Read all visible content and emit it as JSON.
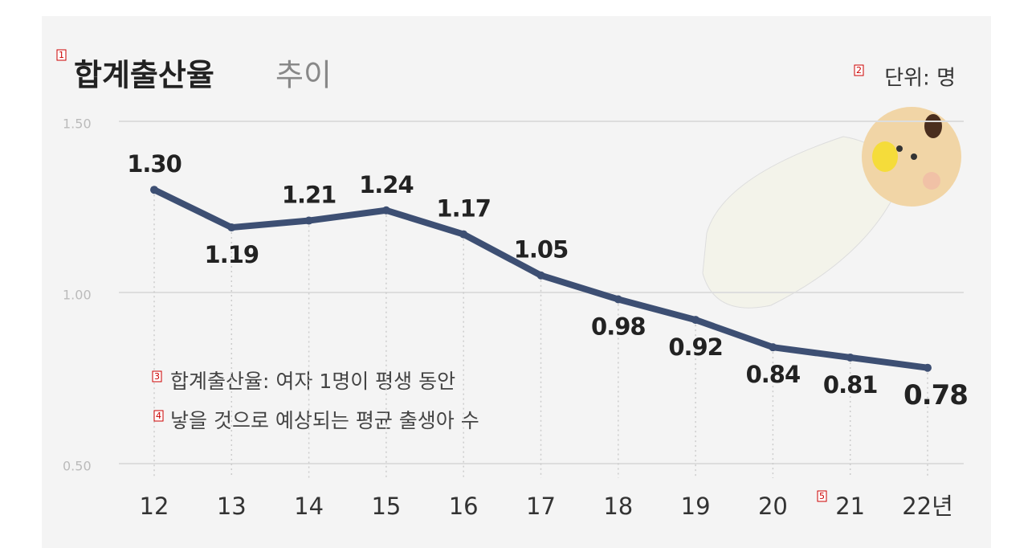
{
  "chart_data": {
    "type": "line",
    "title": "합계출산율",
    "title_suffix": "추이",
    "unit": "단위: 명",
    "notes": [
      "합계출산율: 여자 1명이 평생 동안",
      "낳을 것으로 예상되는 평균 출생아 수"
    ],
    "categories": [
      "12",
      "13",
      "14",
      "15",
      "16",
      "17",
      "18",
      "19",
      "20",
      "21",
      "22년"
    ],
    "values": [
      1.3,
      1.19,
      1.21,
      1.24,
      1.17,
      1.05,
      0.98,
      0.92,
      0.84,
      0.81,
      0.78
    ],
    "value_labels": [
      "1.30",
      "1.19",
      "1.21",
      "1.24",
      "1.17",
      "1.05",
      "0.98",
      "0.92",
      "0.84",
      "0.81",
      "0.78"
    ],
    "color": "#3d4f73",
    "ylim": [
      0.5,
      1.5
    ],
    "yticks": [
      {
        "value": 0.5,
        "label": "0.50"
      },
      {
        "value": 1.0,
        "label": "1.00"
      },
      {
        "value": 1.5,
        "label": "1.50"
      }
    ],
    "grid": true,
    "markers": [
      "1",
      "2",
      "3",
      "4",
      "5"
    ]
  }
}
